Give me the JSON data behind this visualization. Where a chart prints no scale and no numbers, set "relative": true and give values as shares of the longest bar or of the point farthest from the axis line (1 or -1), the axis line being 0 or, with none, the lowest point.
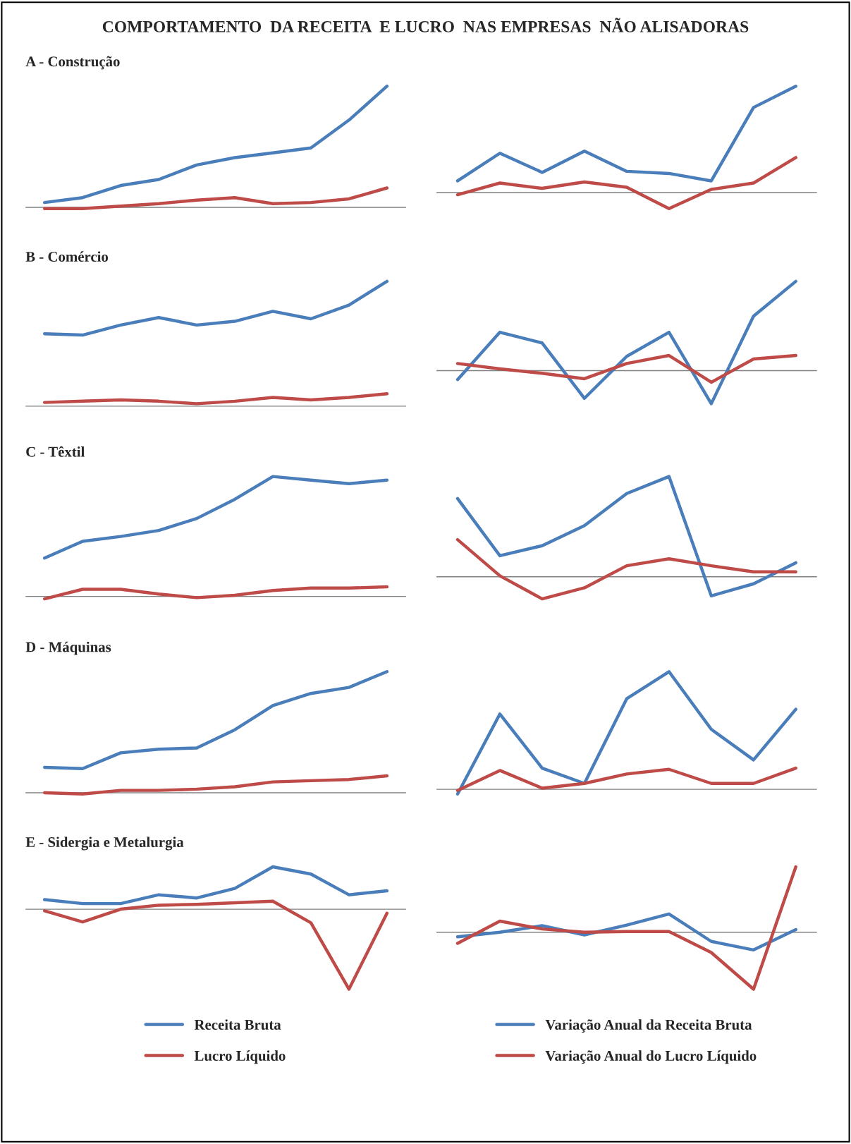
{
  "chart_data": [
    {
      "type": "line",
      "title": "COMPORTAMENTO  DA RECEITA  E LUCRO  NAS EMPRESAS  NÃO ALISADORAS",
      "subtitle": "A - Construção",
      "relative": true,
      "categories": [
        null,
        null,
        null,
        null,
        null,
        null,
        null,
        null,
        null,
        null
      ],
      "series": [
        {
          "color": "#4a7ebb",
          "values": [
            0.04,
            0.08,
            0.18,
            0.23,
            0.35,
            0.41,
            0.45,
            0.49,
            0.72,
            1
          ]
        },
        {
          "color": "#be4b48",
          "values": [
            -0.01,
            -0.01,
            0.01,
            0.03,
            0.06,
            0.08,
            0.03,
            0.04,
            0.07,
            0.16
          ]
        }
      ]
    },
    {
      "type": "line",
      "relative": true,
      "categories": [
        null,
        null,
        null,
        null,
        null,
        null,
        null,
        null,
        null
      ],
      "series": [
        {
          "color": "#4a7ebb",
          "values": [
            0.11,
            0.37,
            0.19,
            0.39,
            0.2,
            0.18,
            0.11,
            0.8,
            1
          ]
        },
        {
          "color": "#be4b48",
          "values": [
            -0.02,
            0.09,
            0.04,
            0.1,
            0.05,
            -0.15,
            0.03,
            0.09,
            0.33
          ]
        }
      ]
    },
    {
      "type": "line",
      "subtitle": "B - Comércio",
      "relative": true,
      "categories": [
        null,
        null,
        null,
        null,
        null,
        null,
        null,
        null,
        null,
        null
      ],
      "series": [
        {
          "color": "#4a7ebb",
          "values": [
            0.58,
            0.57,
            0.65,
            0.71,
            0.65,
            0.68,
            0.76,
            0.7,
            0.81,
            1
          ]
        },
        {
          "color": "#be4b48",
          "values": [
            0.03,
            0.04,
            0.05,
            0.04,
            0.02,
            0.04,
            0.07,
            0.05,
            0.07,
            0.1
          ]
        }
      ]
    },
    {
      "type": "line",
      "relative": true,
      "categories": [
        null,
        null,
        null,
        null,
        null,
        null,
        null,
        null,
        null
      ],
      "series": [
        {
          "color": "#4a7ebb",
          "values": [
            -0.1,
            0.43,
            0.31,
            -0.31,
            0.16,
            0.43,
            -0.37,
            0.61,
            1
          ]
        },
        {
          "color": "#be4b48",
          "values": [
            0.08,
            0.02,
            -0.03,
            -0.09,
            0.08,
            0.17,
            -0.13,
            0.13,
            0.17
          ]
        }
      ]
    },
    {
      "type": "line",
      "subtitle": "C - Têxtil",
      "relative": true,
      "categories": [
        null,
        null,
        null,
        null,
        null,
        null,
        null,
        null,
        null,
        null
      ],
      "series": [
        {
          "color": "#4a7ebb",
          "values": [
            0.32,
            0.46,
            0.5,
            0.55,
            0.65,
            0.81,
            1,
            0.97,
            0.94,
            0.97
          ]
        },
        {
          "color": "#be4b48",
          "values": [
            -0.02,
            0.06,
            0.06,
            0.02,
            -0.01,
            0.01,
            0.05,
            0.07,
            0.07,
            0.08
          ]
        }
      ]
    },
    {
      "type": "line",
      "relative": true,
      "categories": [
        null,
        null,
        null,
        null,
        null,
        null,
        null,
        null,
        null
      ],
      "series": [
        {
          "color": "#4a7ebb",
          "values": [
            0.78,
            0.21,
            0.31,
            0.51,
            0.83,
            1,
            -0.19,
            -0.07,
            0.14
          ]
        },
        {
          "color": "#be4b48",
          "values": [
            0.37,
            0.01,
            -0.22,
            -0.11,
            0.11,
            0.18,
            0.11,
            0.05,
            0.05
          ]
        }
      ]
    },
    {
      "type": "line",
      "subtitle": "D - Máquinas",
      "relative": true,
      "categories": [
        null,
        null,
        null,
        null,
        null,
        null,
        null,
        null,
        null,
        null
      ],
      "series": [
        {
          "color": "#4a7ebb",
          "values": [
            0.21,
            0.2,
            0.33,
            0.36,
            0.37,
            0.52,
            0.72,
            0.82,
            0.87,
            1
          ]
        },
        {
          "color": "#be4b48",
          "values": [
            0,
            -0.01,
            0.02,
            0.02,
            0.03,
            0.05,
            0.09,
            0.1,
            0.11,
            0.14
          ]
        }
      ]
    },
    {
      "type": "line",
      "relative": true,
      "categories": [
        null,
        null,
        null,
        null,
        null,
        null,
        null,
        null,
        null
      ],
      "series": [
        {
          "color": "#4a7ebb",
          "values": [
            -0.04,
            0.64,
            0.18,
            0.05,
            0.77,
            1,
            0.51,
            0.25,
            0.68
          ]
        },
        {
          "color": "#be4b48",
          "values": [
            -0.01,
            0.16,
            0.01,
            0.05,
            0.13,
            0.17,
            0.05,
            0.05,
            0.18
          ]
        }
      ]
    },
    {
      "type": "line",
      "subtitle": "E - Sidergia e Metalurgia",
      "relative": true,
      "legend": "bottom",
      "categories": [
        null,
        null,
        null,
        null,
        null,
        null,
        null,
        null,
        null,
        null
      ],
      "series": [
        {
          "name": "Receita Bruta",
          "color": "#4a7ebb",
          "values": [
            0.12,
            0.07,
            0.07,
            0.18,
            0.14,
            0.26,
            0.53,
            0.44,
            0.18,
            0.23
          ]
        },
        {
          "name": "Lucro Líquido",
          "color": "#be4b48",
          "values": [
            -0.02,
            -0.16,
            0,
            0.05,
            0.06,
            0.08,
            0.1,
            -0.17,
            -1,
            -0.05
          ]
        }
      ]
    },
    {
      "type": "line",
      "relative": true,
      "legend": "bottom",
      "categories": [
        null,
        null,
        null,
        null,
        null,
        null,
        null,
        null,
        null
      ],
      "series": [
        {
          "name": "Variação Anual da Receita Bruta",
          "color": "#4a7ebb",
          "values": [
            -0.07,
            0,
            0.1,
            -0.04,
            0.11,
            0.28,
            -0.14,
            -0.27,
            0.04
          ]
        },
        {
          "name": "Variação Anual do Lucro Líquido",
          "color": "#be4b48",
          "values": [
            -0.17,
            0.17,
            0.05,
            0,
            0.01,
            0.01,
            -0.31,
            -0.87,
            1
          ]
        }
      ]
    }
  ]
}
